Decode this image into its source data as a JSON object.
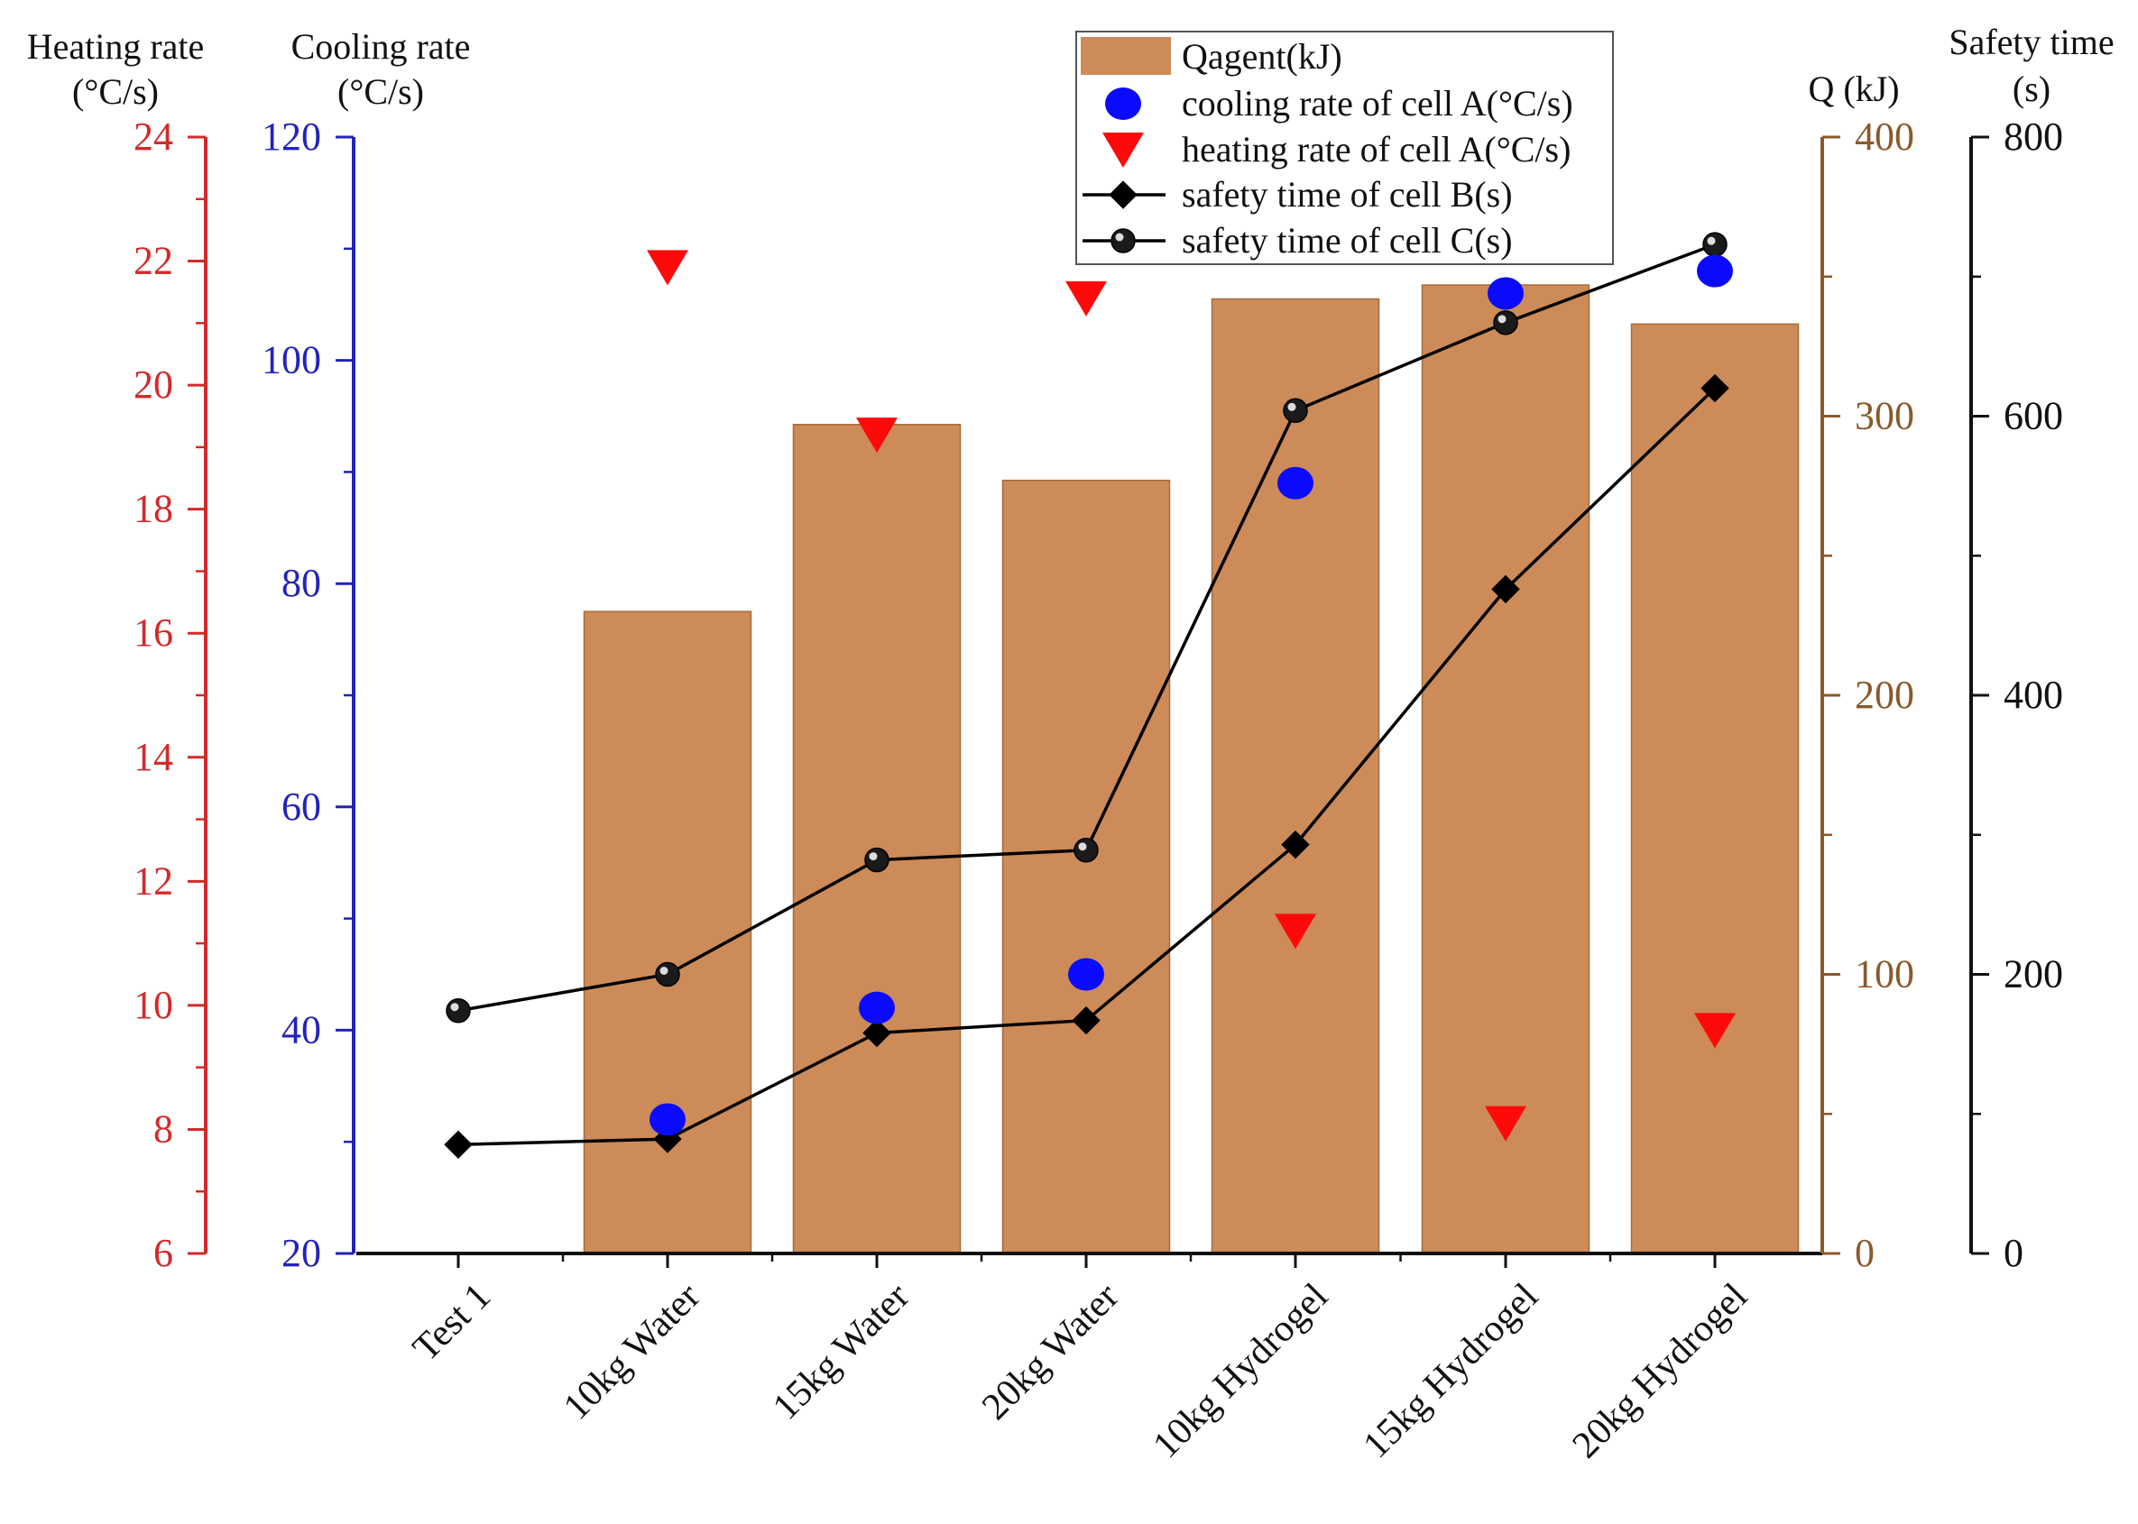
{
  "chart_data": {
    "type": "bar",
    "categories": [
      "Test 1",
      "10kg Water",
      "15kg Water",
      "20kg Water",
      "10kg Hydrogel",
      "15kg Hydrogel",
      "20kg Hydrogel"
    ],
    "series": [
      {
        "name": "Qagent(kJ)",
        "kind": "bar",
        "axis": "q",
        "color": "#cc8b58",
        "values": [
          null,
          230,
          297,
          277,
          342,
          347,
          333
        ]
      },
      {
        "name": "cooling rate of cell A(°C/s)",
        "kind": "circle",
        "axis": "cooling",
        "color": "#0a0aff",
        "values": [
          null,
          32,
          42,
          45,
          89,
          106,
          108
        ]
      },
      {
        "name": "heating rate of cell A(°C/s)",
        "kind": "triangle",
        "axis": "heating",
        "color": "#ff0a0a",
        "values": [
          null,
          21.9,
          19.2,
          21.4,
          11.2,
          8.1,
          9.6
        ]
      },
      {
        "name": "safety time of cell B(s)",
        "kind": "line-diamond",
        "axis": "safety",
        "color": "#000000",
        "values": [
          78,
          82,
          158,
          167,
          293,
          476,
          620
        ]
      },
      {
        "name": "safety time of cell C(s)",
        "kind": "line-ball",
        "axis": "safety",
        "color": "#000000",
        "values": [
          174,
          200,
          282,
          289,
          604,
          667,
          723
        ]
      }
    ],
    "axes": {
      "heating": {
        "title_lines": [
          "Heating rate",
          "(°C/s)"
        ],
        "range": [
          6,
          24
        ],
        "ticks": [
          "6",
          "8",
          "10",
          "12",
          "14",
          "16",
          "18",
          "20",
          "22",
          "24"
        ],
        "color": "#d22a2a"
      },
      "cooling": {
        "title_lines": [
          "Cooling rate",
          "(°C/s)"
        ],
        "range": [
          20,
          120
        ],
        "ticks": [
          "20",
          "40",
          "60",
          "80",
          "100",
          "120"
        ],
        "color": "#2323b9"
      },
      "q": {
        "title_lines": [
          "Q (kJ)"
        ],
        "range": [
          0,
          400
        ],
        "ticks": [
          "0",
          "100",
          "200",
          "300",
          "400"
        ],
        "color": "#8a5a2b"
      },
      "safety": {
        "title_lines": [
          "Safety time",
          "(s)"
        ],
        "range": [
          0,
          800
        ],
        "ticks": [
          "0",
          "200",
          "400",
          "600",
          "800"
        ],
        "color": "#111111"
      }
    },
    "legend": {
      "position": "top-center"
    },
    "grid": false
  }
}
